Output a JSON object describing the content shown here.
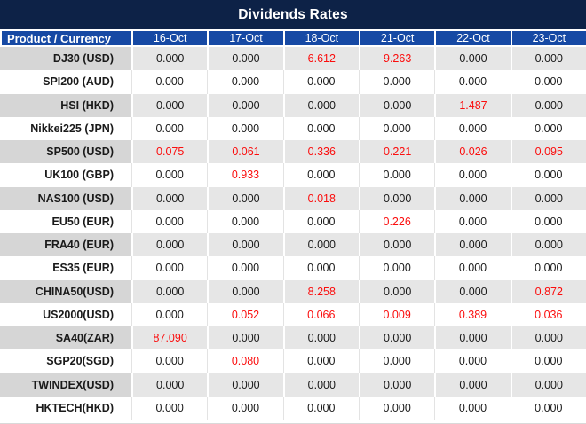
{
  "title": "Dividends Rates",
  "colors": {
    "title_bar_bg": "#0d2247",
    "header_row_bg": "#1649a4",
    "header_text": "#ffffff",
    "value_text": "#1a1a1a",
    "highlight_value_text": "#fb0d0d",
    "stripe_label_bg": "#d6d6d6",
    "stripe_cell_bg": "#e6e6e6",
    "plain_row_bg": "#ffffff"
  },
  "header": {
    "product_label": "Product / Currency",
    "dates": [
      "16-Oct",
      "17-Oct",
      "18-Oct",
      "21-Oct",
      "22-Oct",
      "23-Oct"
    ]
  },
  "rows": [
    {
      "product": "DJ30 (USD)",
      "values": [
        "0.000",
        "0.000",
        "6.612",
        "9.263",
        "0.000",
        "0.000"
      ],
      "red": [
        2,
        3
      ]
    },
    {
      "product": "SPI200 (AUD)",
      "values": [
        "0.000",
        "0.000",
        "0.000",
        "0.000",
        "0.000",
        "0.000"
      ],
      "red": []
    },
    {
      "product": "HSI (HKD)",
      "values": [
        "0.000",
        "0.000",
        "0.000",
        "0.000",
        "1.487",
        "0.000"
      ],
      "red": [
        4
      ]
    },
    {
      "product": "Nikkei225 (JPN)",
      "values": [
        "0.000",
        "0.000",
        "0.000",
        "0.000",
        "0.000",
        "0.000"
      ],
      "red": []
    },
    {
      "product": "SP500 (USD)",
      "values": [
        "0.075",
        "0.061",
        "0.336",
        "0.221",
        "0.026",
        "0.095"
      ],
      "red": [
        0,
        1,
        2,
        3,
        4,
        5
      ]
    },
    {
      "product": "UK100 (GBP)",
      "values": [
        "0.000",
        "0.933",
        "0.000",
        "0.000",
        "0.000",
        "0.000"
      ],
      "red": [
        1
      ]
    },
    {
      "product": "NAS100 (USD)",
      "values": [
        "0.000",
        "0.000",
        "0.018",
        "0.000",
        "0.000",
        "0.000"
      ],
      "red": [
        2
      ]
    },
    {
      "product": "EU50 (EUR)",
      "values": [
        "0.000",
        "0.000",
        "0.000",
        "0.226",
        "0.000",
        "0.000"
      ],
      "red": [
        3
      ]
    },
    {
      "product": "FRA40 (EUR)",
      "values": [
        "0.000",
        "0.000",
        "0.000",
        "0.000",
        "0.000",
        "0.000"
      ],
      "red": []
    },
    {
      "product": "ES35 (EUR)",
      "values": [
        "0.000",
        "0.000",
        "0.000",
        "0.000",
        "0.000",
        "0.000"
      ],
      "red": []
    },
    {
      "product": "CHINA50(USD)",
      "values": [
        "0.000",
        "0.000",
        "8.258",
        "0.000",
        "0.000",
        "0.872"
      ],
      "red": [
        2,
        5
      ]
    },
    {
      "product": "US2000(USD)",
      "values": [
        "0.000",
        "0.052",
        "0.066",
        "0.009",
        "0.389",
        "0.036"
      ],
      "red": [
        1,
        2,
        3,
        4,
        5
      ]
    },
    {
      "product": "SA40(ZAR)",
      "values": [
        "87.090",
        "0.000",
        "0.000",
        "0.000",
        "0.000",
        "0.000"
      ],
      "red": [
        0
      ]
    },
    {
      "product": "SGP20(SGD)",
      "values": [
        "0.000",
        "0.080",
        "0.000",
        "0.000",
        "0.000",
        "0.000"
      ],
      "red": [
        1
      ]
    },
    {
      "product": "TWINDEX(USD)",
      "values": [
        "0.000",
        "0.000",
        "0.000",
        "0.000",
        "0.000",
        "0.000"
      ],
      "red": []
    },
    {
      "product": "HKTECH(HKD)",
      "values": [
        "0.000",
        "0.000",
        "0.000",
        "0.000",
        "0.000",
        "0.000"
      ],
      "red": []
    }
  ],
  "chart_data": {
    "type": "table",
    "title": "Dividends Rates",
    "columns": [
      "Product / Currency",
      "16-Oct",
      "17-Oct",
      "18-Oct",
      "21-Oct",
      "22-Oct",
      "23-Oct"
    ],
    "rows": [
      [
        "DJ30 (USD)",
        0.0,
        0.0,
        6.612,
        9.263,
        0.0,
        0.0
      ],
      [
        "SPI200 (AUD)",
        0.0,
        0.0,
        0.0,
        0.0,
        0.0,
        0.0
      ],
      [
        "HSI (HKD)",
        0.0,
        0.0,
        0.0,
        0.0,
        1.487,
        0.0
      ],
      [
        "Nikkei225 (JPN)",
        0.0,
        0.0,
        0.0,
        0.0,
        0.0,
        0.0
      ],
      [
        "SP500 (USD)",
        0.075,
        0.061,
        0.336,
        0.221,
        0.026,
        0.095
      ],
      [
        "UK100 (GBP)",
        0.0,
        0.933,
        0.0,
        0.0,
        0.0,
        0.0
      ],
      [
        "NAS100 (USD)",
        0.0,
        0.0,
        0.018,
        0.0,
        0.0,
        0.0
      ],
      [
        "EU50 (EUR)",
        0.0,
        0.0,
        0.0,
        0.226,
        0.0,
        0.0
      ],
      [
        "FRA40 (EUR)",
        0.0,
        0.0,
        0.0,
        0.0,
        0.0,
        0.0
      ],
      [
        "ES35 (EUR)",
        0.0,
        0.0,
        0.0,
        0.0,
        0.0,
        0.0
      ],
      [
        "CHINA50(USD)",
        0.0,
        0.0,
        8.258,
        0.0,
        0.0,
        0.872
      ],
      [
        "US2000(USD)",
        0.0,
        0.052,
        0.066,
        0.009,
        0.389,
        0.036
      ],
      [
        "SA40(ZAR)",
        87.09,
        0.0,
        0.0,
        0.0,
        0.0,
        0.0
      ],
      [
        "SGP20(SGD)",
        0.0,
        0.08,
        0.0,
        0.0,
        0.0,
        0.0
      ],
      [
        "TWINDEX(USD)",
        0.0,
        0.0,
        0.0,
        0.0,
        0.0,
        0.0
      ],
      [
        "HKTECH(HKD)",
        0.0,
        0.0,
        0.0,
        0.0,
        0.0,
        0.0
      ]
    ],
    "notes": "Nonzero dividend rates are rendered in red; zero values in black. Dates skip the 19th-20th (weekend)."
  }
}
